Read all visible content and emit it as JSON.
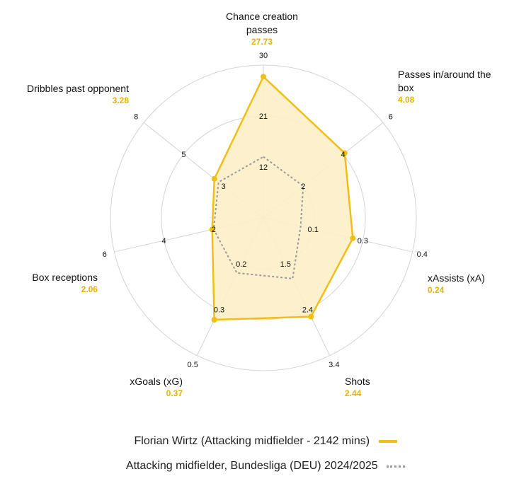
{
  "chart_data": {
    "type": "radar",
    "axes": [
      {
        "label": "Chance creation\npasses",
        "value_label": "27.73",
        "ticks": [
          "12",
          "21",
          "30"
        ],
        "max": 30
      },
      {
        "label": "Passes in/around the\nbox",
        "value_label": "4.08",
        "ticks": [
          "2",
          "4",
          "6"
        ],
        "max": 6
      },
      {
        "label": "xAssists (xA)",
        "value_label": "0.24",
        "ticks": [
          "0.1",
          "0.3",
          "0.4"
        ],
        "max": 0.4
      },
      {
        "label": "Shots",
        "value_label": "2.44",
        "ticks": [
          "1.5",
          "2.4",
          "3.4"
        ],
        "max": 3.4
      },
      {
        "label": "xGoals (xG)",
        "value_label": "0.37",
        "ticks": [
          "0.2",
          "0.3",
          "0.5"
        ],
        "max": 0.5
      },
      {
        "label": "Box receptions",
        "value_label": "2.06",
        "ticks": [
          "2",
          "4",
          "6"
        ],
        "max": 6
      },
      {
        "label": "Dribbles past opponent",
        "value_label": "3.28",
        "ticks": [
          "3",
          "5",
          "8"
        ],
        "max": 8
      }
    ],
    "series": [
      {
        "name": "Florian Wirtz (Attacking midfielder - 2142 mins)",
        "values": [
          27.73,
          4.08,
          0.24,
          2.44,
          0.37,
          2.06,
          3.28
        ],
        "color": "#f0bf16",
        "style": "solid"
      },
      {
        "name": "Attacking midfielder, Bundesliga (DEU) 2024/2025",
        "values": [
          12,
          2,
          0.1,
          1.5,
          0.2,
          2,
          3
        ],
        "color": "#9a9a9a",
        "style": "dotted"
      }
    ]
  },
  "colors": {
    "accent": "#f0bf16",
    "fill": "#fdf0c8",
    "value_text": "#e6b400",
    "grid": "#d4d4d4",
    "average": "#9a9a9a"
  }
}
